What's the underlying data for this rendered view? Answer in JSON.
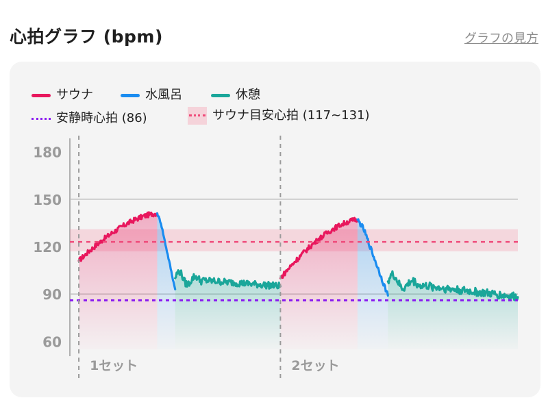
{
  "header": {
    "title": "心拍グラフ (bpm)",
    "help_link": "グラフの見方"
  },
  "legend": {
    "items": [
      {
        "label": "サウナ",
        "color": "#e8175d",
        "kind": "line"
      },
      {
        "label": "水風呂",
        "color": "#1a8cf0",
        "kind": "line"
      },
      {
        "label": "休憩",
        "color": "#1aa69a",
        "kind": "line"
      },
      {
        "label": "安静時心拍 (86)",
        "color": "#8a1bf0",
        "kind": "dotted"
      },
      {
        "label": "サウナ目安心拍 (117~131)",
        "color": "#ef4b7a",
        "kind": "band"
      }
    ]
  },
  "chart_data": {
    "type": "line",
    "title": "心拍グラフ (bpm)",
    "y_ticks": [
      "180",
      "150",
      "120",
      "90",
      "60"
    ],
    "ylim": [
      55,
      185
    ],
    "xlim": [
      0,
      100
    ],
    "resting_hr": {
      "label": "安静時心拍 (86)",
      "value": 86,
      "color": "#8a1bf0"
    },
    "target_band": {
      "label": "サウナ目安心拍 (117~131)",
      "min": 117,
      "max": 131,
      "midline": 123,
      "color": "#ef4b7a"
    },
    "set_markers": [
      {
        "label": "1セット",
        "x": 2
      },
      {
        "label": "2セット",
        "x": 47
      }
    ],
    "series": [
      {
        "name": "サウナ",
        "color": "#e8175d",
        "x_start": 2,
        "x_end": 19.5,
        "start": 111,
        "end": 141,
        "shape": "rise",
        "noise": 1.6
      },
      {
        "name": "水風呂",
        "color": "#1a8cf0",
        "x_start": 19.5,
        "x_end": 23.5,
        "start": 141,
        "end": 93,
        "shape": "drop",
        "noise": 0.8
      },
      {
        "name": "休憩",
        "color": "#1aa69a",
        "x_start": 23.5,
        "x_end": 47,
        "start": 100,
        "end": 95,
        "shape": "rest",
        "noise": 2.2
      },
      {
        "name": "サウナ",
        "color": "#e8175d",
        "x_start": 47,
        "x_end": 64.2,
        "start": 100,
        "end": 137,
        "shape": "rise",
        "noise": 1.6
      },
      {
        "name": "水風呂",
        "color": "#1a8cf0",
        "x_start": 64.2,
        "x_end": 71,
        "start": 137,
        "end": 89,
        "shape": "drop",
        "noise": 1.5
      },
      {
        "name": "休憩",
        "color": "#1aa69a",
        "x_start": 71,
        "x_end": 100,
        "start": 98,
        "end": 88,
        "shape": "rest",
        "noise": 2.6
      }
    ]
  }
}
